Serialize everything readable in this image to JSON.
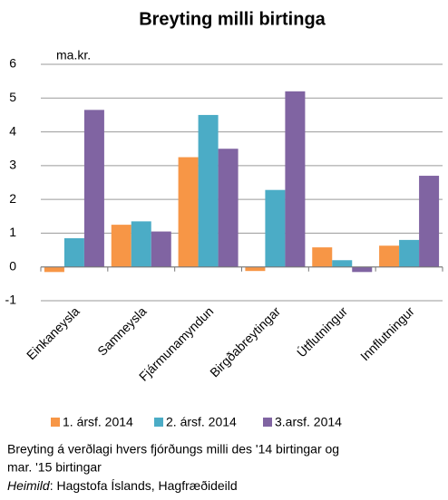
{
  "chart_data": {
    "type": "bar",
    "title": "Breyting  milli birtinga",
    "y_unit": "ma.kr.",
    "categories": [
      "Einkaneysla",
      "Samneysla",
      "Fjármunamyndun",
      "Birgðabreytingar",
      "Útflutningur",
      "Innflutningur"
    ],
    "series": [
      {
        "name": "1. ársf. 2014",
        "color": "#f79646",
        "values": [
          -0.15,
          1.25,
          3.25,
          -0.12,
          0.58,
          0.63
        ]
      },
      {
        "name": "2. ársf. 2014",
        "color": "#4bacc6",
        "values": [
          0.85,
          1.35,
          4.5,
          2.28,
          0.2,
          0.8
        ]
      },
      {
        "name": "3.arsf. 2014",
        "color": "#8064a2",
        "values": [
          4.65,
          1.05,
          3.5,
          5.2,
          -0.15,
          2.7
        ]
      }
    ],
    "ylim": [
      -1,
      6
    ],
    "yticks": [
      -1,
      0,
      1,
      2,
      3,
      4,
      5,
      6
    ],
    "grid": true,
    "legend": "bottom",
    "note": [
      "Breyting á verðlagi hvers fjórðungs milli des '14 birtingar og",
      "mar. '15 birtingar"
    ],
    "source_label": "Heimild",
    "source_text": ": Hagstofa Íslands, Hagfræðideild"
  }
}
